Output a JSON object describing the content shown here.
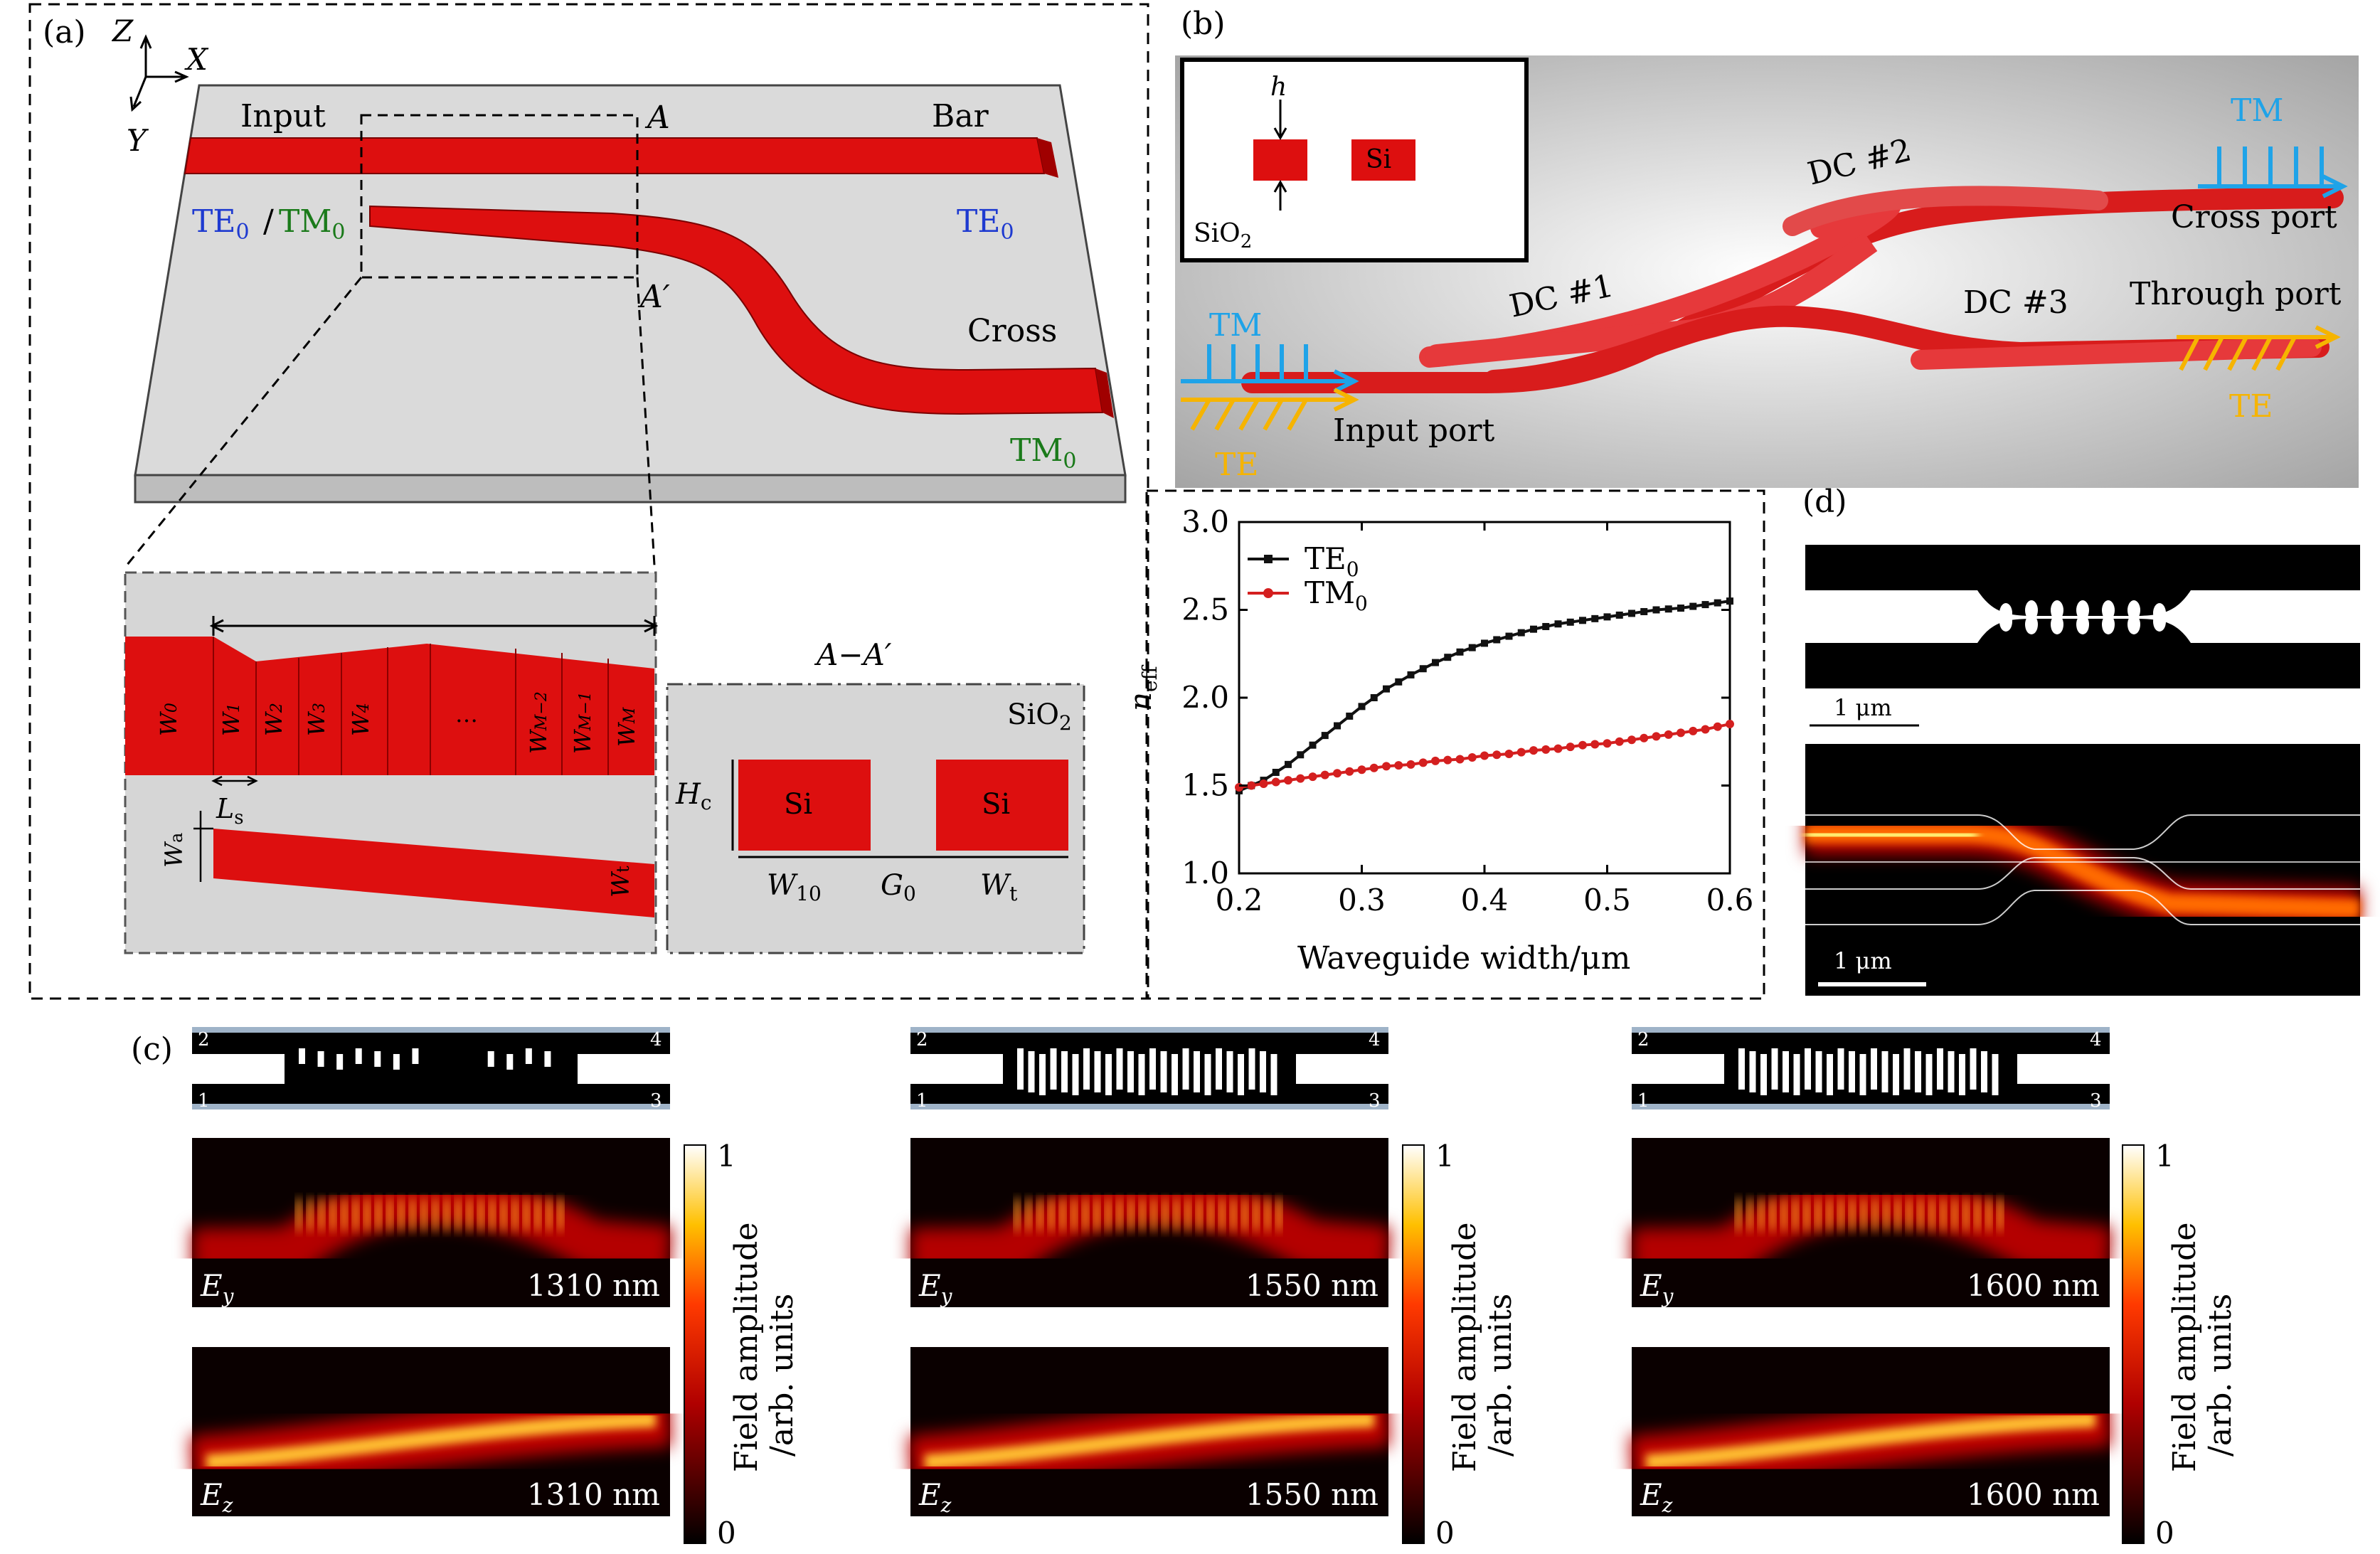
{
  "panels": {
    "a": {
      "label": "(a)",
      "axes": {
        "z": "Z",
        "x": "X",
        "y": "Y"
      },
      "input": "Input",
      "bar": "Bar",
      "cross": "Cross",
      "a_mark": "A",
      "a_prime": "A′",
      "te0": "TE",
      "tm0": "TM",
      "sub0": "0",
      "slash": "/",
      "zoom_segments": [
        "W",
        "W",
        "W",
        "W",
        "W",
        "…",
        "W",
        "W",
        "W"
      ],
      "zoom_subs": [
        "0",
        "1",
        "2",
        "3",
        "4",
        "",
        "M−2",
        "M−1",
        "M"
      ],
      "ls": "L",
      "ls_sub": "s",
      "wa": "W",
      "wa_sub": "a",
      "wt": "W",
      "wt_sub": "t",
      "cross_section_title": "A−A′",
      "sio2": "SiO",
      "sio2_sub": "2",
      "si": "Si",
      "hc": "H",
      "hc_sub": "c",
      "w10": "W",
      "w10_sub": "10",
      "g0": "G",
      "g0_sub": "0"
    },
    "b": {
      "label": "(b)",
      "inset_h": "h",
      "inset_si": "Si",
      "inset_sio2": "SiO",
      "inset_sio2_sub": "2",
      "dc1": "DC #1",
      "dc2": "DC #2",
      "dc3": "DC #3",
      "tm": "TM",
      "te": "TE",
      "input_port": "Input port",
      "cross_port": "Cross port",
      "through_port": "Through port"
    },
    "chart": {
      "xlabel": "Waveguide width/μm",
      "ylabel": "n",
      "ylabel_sub": "eff"
    },
    "d": {
      "label": "(d)",
      "scale1": "1 μm",
      "scale2": "1 μm"
    },
    "c": {
      "label": "(c)",
      "ports": [
        "1",
        "2",
        "3",
        "4"
      ],
      "colorbar_label_1": "Field amplitude",
      "colorbar_label_2": "/arb. units",
      "cb_max": "1",
      "cb_min": "0",
      "columns": [
        {
          "wavelength": "1310 nm",
          "ey": "E",
          "ey_sub": "y",
          "ez": "E",
          "ez_sub": "z"
        },
        {
          "wavelength": "1550 nm",
          "ey": "E",
          "ey_sub": "y",
          "ez": "E",
          "ez_sub": "z"
        },
        {
          "wavelength": "1600 nm",
          "ey": "E",
          "ey_sub": "y",
          "ez": "E",
          "ez_sub": "z"
        }
      ]
    }
  },
  "colors": {
    "waveguide": "#dd0f0f",
    "substrate": "#d9d9d9",
    "te_blue": "#1e3ad0",
    "tm_green": "#1a7a1a",
    "tm_arrow": "#1fa3e8",
    "te_arrow": "#f6b400",
    "te0_series": "#111111",
    "tm0_series": "#d41f1f"
  },
  "chart_data": {
    "type": "line",
    "xlim": [
      0.2,
      0.6
    ],
    "ylim": [
      1.0,
      3.0
    ],
    "xticks": [
      "0.2",
      "0.3",
      "0.4",
      "0.5",
      "0.6"
    ],
    "yticks": [
      "1.0",
      "1.5",
      "2.0",
      "2.5",
      "3.0"
    ],
    "xlabel": "Waveguide width/μm",
    "ylabel": "n_eff",
    "legend": "top-left",
    "x": [
      0.2,
      0.22,
      0.24,
      0.26,
      0.28,
      0.3,
      0.32,
      0.34,
      0.36,
      0.38,
      0.4,
      0.42,
      0.44,
      0.46,
      0.48,
      0.5,
      0.52,
      0.54,
      0.56,
      0.58,
      0.6
    ],
    "series": [
      {
        "name": "TE0",
        "name_main": "TE",
        "name_sub": "0",
        "color": "#111111",
        "values": [
          1.47,
          1.53,
          1.62,
          1.73,
          1.84,
          1.95,
          2.05,
          2.13,
          2.2,
          2.26,
          2.31,
          2.35,
          2.39,
          2.42,
          2.44,
          2.46,
          2.48,
          2.5,
          2.51,
          2.53,
          2.55
        ]
      },
      {
        "name": "TM0",
        "name_main": "TM",
        "name_sub": "0",
        "color": "#d41f1f",
        "values": [
          1.49,
          1.51,
          1.53,
          1.55,
          1.57,
          1.59,
          1.61,
          1.62,
          1.64,
          1.65,
          1.67,
          1.68,
          1.7,
          1.71,
          1.73,
          1.74,
          1.76,
          1.78,
          1.8,
          1.82,
          1.85
        ]
      }
    ]
  }
}
